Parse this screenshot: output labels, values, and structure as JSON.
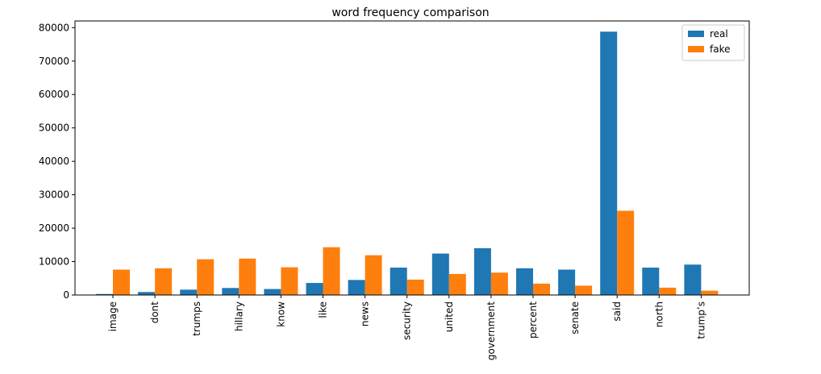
{
  "chart_data": {
    "type": "bar",
    "title": "word frequency comparison",
    "xlabel": "",
    "ylabel": "",
    "ylim": [
      0,
      82000
    ],
    "yticks": [
      0,
      10000,
      20000,
      30000,
      40000,
      50000,
      60000,
      70000,
      80000
    ],
    "categories": [
      "image",
      "dont",
      "trumps",
      "hillary",
      "know",
      "like",
      "news",
      "security",
      "united",
      "government",
      "percent",
      "senate",
      "said",
      "north",
      "trump’s"
    ],
    "series": [
      {
        "name": "real",
        "color": "#1f77b4",
        "values": [
          300,
          900,
          1600,
          2100,
          1800,
          3600,
          4500,
          8200,
          12400,
          14000,
          8000,
          7600,
          78800,
          8200,
          9100
        ]
      },
      {
        "name": "fake",
        "color": "#ff7f0e",
        "values": [
          7600,
          8000,
          10700,
          10900,
          8300,
          14300,
          11900,
          4600,
          6300,
          6700,
          3400,
          2800,
          25200,
          2200,
          1300
        ]
      }
    ],
    "legend_position": "top-right",
    "grid": false
  }
}
